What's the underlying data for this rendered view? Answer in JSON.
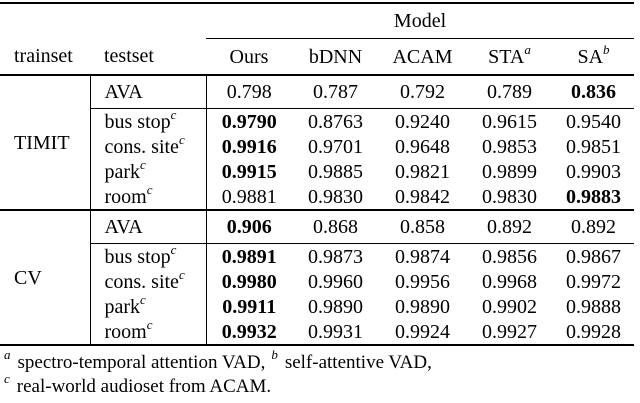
{
  "table": {
    "model_group_header": "Model",
    "col_headers": {
      "trainset": "trainset",
      "testset": "testset",
      "models": [
        {
          "label": "Ours",
          "sup": ""
        },
        {
          "label": "bDNN",
          "sup": ""
        },
        {
          "label": "ACAM",
          "sup": ""
        },
        {
          "label": "STA",
          "sup": "a"
        },
        {
          "label": "SA",
          "sup": "b"
        }
      ]
    },
    "sections": [
      {
        "trainset": "TIMIT",
        "rows": [
          {
            "testset": "AVA",
            "sup": "",
            "values": [
              "0.798",
              "0.787",
              "0.792",
              "0.789",
              "0.836"
            ],
            "bold": [
              4
            ]
          },
          {
            "testset": "bus stop",
            "sup": "c",
            "values": [
              "0.9790",
              "0.8763",
              "0.9240",
              "0.9615",
              "0.9540"
            ],
            "bold": [
              0
            ]
          },
          {
            "testset": "cons. site",
            "sup": "c",
            "values": [
              "0.9916",
              "0.9701",
              "0.9648",
              "0.9853",
              "0.9851"
            ],
            "bold": [
              0
            ]
          },
          {
            "testset": "park",
            "sup": "c",
            "values": [
              "0.9915",
              "0.9885",
              "0.9821",
              "0.9899",
              "0.9903"
            ],
            "bold": [
              0
            ]
          },
          {
            "testset": "room",
            "sup": "c",
            "values": [
              "0.9881",
              "0.9830",
              "0.9842",
              "0.9830",
              "0.9883"
            ],
            "bold": [
              4
            ]
          }
        ]
      },
      {
        "trainset": "CV",
        "rows": [
          {
            "testset": "AVA",
            "sup": "",
            "values": [
              "0.906",
              "0.868",
              "0.858",
              "0.892",
              "0.892"
            ],
            "bold": [
              0
            ]
          },
          {
            "testset": "bus stop",
            "sup": "c",
            "values": [
              "0.9891",
              "0.9873",
              "0.9874",
              "0.9856",
              "0.9867"
            ],
            "bold": [
              0
            ]
          },
          {
            "testset": "cons. site",
            "sup": "c",
            "values": [
              "0.9980",
              "0.9960",
              "0.9956",
              "0.9968",
              "0.9972"
            ],
            "bold": [
              0
            ]
          },
          {
            "testset": "park",
            "sup": "c",
            "values": [
              "0.9911",
              "0.9890",
              "0.9890",
              "0.9902",
              "0.9888"
            ],
            "bold": [
              0
            ]
          },
          {
            "testset": "room",
            "sup": "c",
            "values": [
              "0.9932",
              "0.9931",
              "0.9924",
              "0.9927",
              "0.9928"
            ],
            "bold": [
              0
            ]
          }
        ]
      }
    ]
  },
  "footnotes": {
    "line1": [
      {
        "sup": "a",
        "text": "spectro-temporal attention VAD,"
      },
      {
        "sup": "b",
        "text": "self-attentive VAD,"
      }
    ],
    "line2": [
      {
        "sup": "c",
        "text": "real-world audioset from ACAM."
      }
    ]
  }
}
